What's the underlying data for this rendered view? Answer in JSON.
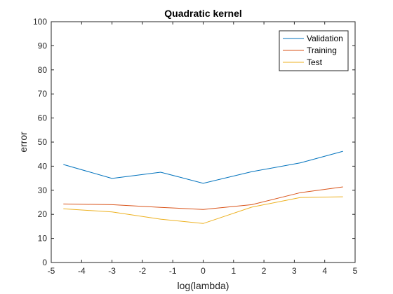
{
  "chart_data": {
    "type": "line",
    "title": "Quadratic kernel",
    "xlabel": "log(lambda)",
    "ylabel": "error",
    "xlim": [
      -5,
      5
    ],
    "ylim": [
      0,
      100
    ],
    "xticks": [
      "-5",
      "-4",
      "-3",
      "-2",
      "-1",
      "0",
      "1",
      "2",
      "3",
      "4",
      "5"
    ],
    "yticks": [
      "0",
      "10",
      "20",
      "30",
      "40",
      "50",
      "60",
      "70",
      "80",
      "90",
      "100"
    ],
    "grid": false,
    "legend_position": "top-right",
    "x": [
      -4.6,
      -3.0,
      -1.4,
      0.0,
      1.6,
      3.2,
      4.6
    ],
    "series": [
      {
        "name": "Validation",
        "color": "#0072BD",
        "values": [
          40.7,
          34.9,
          37.5,
          32.9,
          37.7,
          41.4,
          46.2
        ]
      },
      {
        "name": "Training",
        "color": "#D95319",
        "values": [
          24.3,
          24.0,
          22.9,
          22.0,
          24.0,
          29.0,
          31.4
        ]
      },
      {
        "name": "Test",
        "color": "#EDB120",
        "values": [
          22.3,
          21.0,
          18.0,
          16.2,
          23.0,
          27.0,
          27.3
        ]
      }
    ]
  }
}
